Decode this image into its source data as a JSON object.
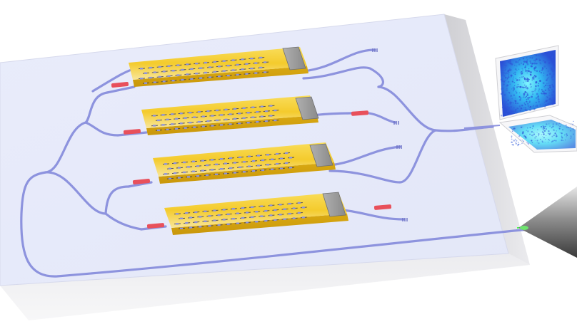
{
  "colors": {
    "chip_top": "#e8ebfa",
    "chip_edge_right": "#d8d8dc",
    "chip_edge_bottom": "#f1f1f3",
    "waveguide": "#8d93de",
    "heater": "#e8505b",
    "electrode": "#f3c72a",
    "pad": "#9b9b9b",
    "laser": "#22ff22",
    "screen_glow": "#4fe7ff",
    "speckle": "#2e57d8"
  },
  "components": {
    "chip": "photonic-chip",
    "interferometer_rows": 4,
    "output_ports": 4,
    "detector": "speckle-screen",
    "source": "fiber-tip"
  }
}
